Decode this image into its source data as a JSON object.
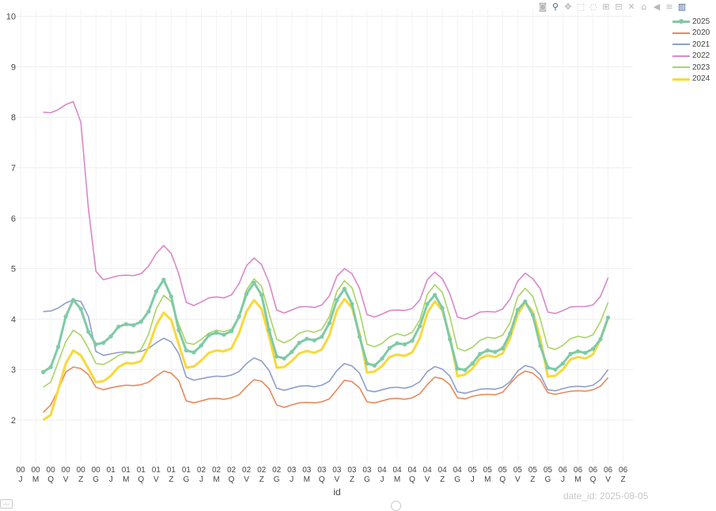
{
  "modebar": {
    "icons": [
      "camera-icon",
      "zoom-icon",
      "pan-icon",
      "box-select-icon",
      "lasso-icon",
      "zoom-in-icon",
      "zoom-out-icon",
      "autoscale-icon",
      "home-icon",
      "hover-closest-icon",
      "hover-compare-icon",
      "plotly-logo-icon"
    ]
  },
  "watermark_text": "date_id: 2025-08-05",
  "corner_button_label": "…",
  "chart_data": {
    "type": "line",
    "title": "",
    "xlabel": "id",
    "ylabel": "",
    "ylim": [
      1.2,
      10
    ],
    "yticks": [
      2,
      3,
      4,
      5,
      6,
      7,
      8,
      9,
      10
    ],
    "grid": true,
    "legend_position": "top-right",
    "tick_labels": [
      [
        "00",
        "J"
      ],
      [
        "00",
        "M"
      ],
      [
        "00",
        "Q"
      ],
      [
        "00",
        "V"
      ],
      [
        "00",
        "Z"
      ],
      [
        "00",
        "G"
      ],
      [
        "01",
        "J"
      ],
      [
        "01",
        "M"
      ],
      [
        "01",
        "Q"
      ],
      [
        "01",
        "V"
      ],
      [
        "01",
        "Z"
      ],
      [
        "01",
        "G"
      ],
      [
        "02",
        "J"
      ],
      [
        "02",
        "M"
      ],
      [
        "02",
        "Q"
      ],
      [
        "02",
        "V"
      ],
      [
        "02",
        "Z"
      ],
      [
        "02",
        "G"
      ],
      [
        "03",
        "J"
      ],
      [
        "03",
        "M"
      ],
      [
        "03",
        "Q"
      ],
      [
        "03",
        "V"
      ],
      [
        "03",
        "Z"
      ],
      [
        "03",
        "G"
      ],
      [
        "04",
        "J"
      ],
      [
        "04",
        "M"
      ],
      [
        "04",
        "Q"
      ],
      [
        "04",
        "V"
      ],
      [
        "04",
        "Z"
      ],
      [
        "04",
        "G"
      ],
      [
        "05",
        "J"
      ],
      [
        "05",
        "M"
      ],
      [
        "05",
        "Q"
      ],
      [
        "05",
        "V"
      ],
      [
        "05",
        "Z"
      ],
      [
        "05",
        "G"
      ],
      [
        "06",
        "J"
      ],
      [
        "06",
        "M"
      ],
      [
        "06",
        "Q"
      ],
      [
        "06",
        "V"
      ],
      [
        "06",
        "Z"
      ]
    ],
    "series": [
      {
        "name": "2020",
        "color": "#e8895d",
        "width": 1.6,
        "markers": false,
        "values": [
          2.15,
          2.3,
          2.6,
          2.95,
          3.05,
          3.02,
          2.9,
          2.65,
          2.6,
          2.64,
          2.67,
          2.69,
          2.68,
          2.7,
          2.75,
          2.87,
          2.97,
          2.93,
          2.78,
          2.38,
          2.34,
          2.38,
          2.42,
          2.43,
          2.41,
          2.44,
          2.5,
          2.66,
          2.8,
          2.77,
          2.62,
          2.3,
          2.25,
          2.3,
          2.34,
          2.35,
          2.34,
          2.36,
          2.42,
          2.6,
          2.79,
          2.76,
          2.64,
          2.36,
          2.34,
          2.38,
          2.42,
          2.43,
          2.41,
          2.44,
          2.52,
          2.7,
          2.85,
          2.82,
          2.7,
          2.44,
          2.42,
          2.47,
          2.5,
          2.51,
          2.5,
          2.55,
          2.72,
          2.88,
          2.97,
          2.93,
          2.8,
          2.54,
          2.51,
          2.54,
          2.57,
          2.58,
          2.57,
          2.6,
          2.67,
          2.84
        ]
      },
      {
        "name": "2021",
        "color": "#8f9ecb",
        "width": 1.6,
        "markers": false,
        "values": [
          4.15,
          4.16,
          4.22,
          4.32,
          4.38,
          4.35,
          4.05,
          3.36,
          3.28,
          3.31,
          3.34,
          3.35,
          3.34,
          3.36,
          3.42,
          3.53,
          3.62,
          3.55,
          3.32,
          2.85,
          2.79,
          2.82,
          2.85,
          2.87,
          2.86,
          2.89,
          2.96,
          3.12,
          3.23,
          3.17,
          2.98,
          2.63,
          2.59,
          2.63,
          2.67,
          2.68,
          2.66,
          2.69,
          2.77,
          2.98,
          3.12,
          3.07,
          2.93,
          2.59,
          2.56,
          2.6,
          2.64,
          2.65,
          2.63,
          2.67,
          2.76,
          2.96,
          3.06,
          3.01,
          2.87,
          2.56,
          2.53,
          2.57,
          2.61,
          2.62,
          2.61,
          2.65,
          2.76,
          2.97,
          3.08,
          3.04,
          2.9,
          2.6,
          2.58,
          2.62,
          2.66,
          2.67,
          2.66,
          2.69,
          2.8,
          3.0
        ]
      },
      {
        "name": "2022",
        "color": "#da87c8",
        "width": 1.6,
        "markers": false,
        "values": [
          8.1,
          8.09,
          8.15,
          8.25,
          8.31,
          7.9,
          6.2,
          4.95,
          4.78,
          4.82,
          4.86,
          4.87,
          4.86,
          4.9,
          5.05,
          5.3,
          5.46,
          5.3,
          4.9,
          4.33,
          4.27,
          4.34,
          4.42,
          4.44,
          4.42,
          4.48,
          4.7,
          5.06,
          5.21,
          5.08,
          4.72,
          4.18,
          4.12,
          4.18,
          4.24,
          4.25,
          4.23,
          4.28,
          4.46,
          4.85,
          5.0,
          4.9,
          4.61,
          4.09,
          4.04,
          4.1,
          4.17,
          4.18,
          4.17,
          4.21,
          4.38,
          4.78,
          4.93,
          4.8,
          4.5,
          4.04,
          4.0,
          4.06,
          4.14,
          4.15,
          4.14,
          4.2,
          4.4,
          4.75,
          4.91,
          4.8,
          4.6,
          4.14,
          4.11,
          4.17,
          4.24,
          4.25,
          4.25,
          4.28,
          4.45,
          4.82
        ]
      },
      {
        "name": "2023",
        "color": "#a9d465",
        "width": 1.6,
        "markers": false,
        "values": [
          2.65,
          2.75,
          3.15,
          3.55,
          3.78,
          3.68,
          3.42,
          3.12,
          3.1,
          3.18,
          3.28,
          3.33,
          3.32,
          3.4,
          3.7,
          4.2,
          4.47,
          4.35,
          3.9,
          3.53,
          3.5,
          3.6,
          3.72,
          3.78,
          3.75,
          3.8,
          4.05,
          4.58,
          4.8,
          4.65,
          4.1,
          3.6,
          3.53,
          3.6,
          3.72,
          3.77,
          3.74,
          3.8,
          4.05,
          4.55,
          4.76,
          4.62,
          4.15,
          3.5,
          3.45,
          3.52,
          3.65,
          3.71,
          3.67,
          3.74,
          3.98,
          4.49,
          4.68,
          4.53,
          4.05,
          3.42,
          3.37,
          3.44,
          3.58,
          3.64,
          3.62,
          3.68,
          3.93,
          4.44,
          4.61,
          4.45,
          4.0,
          3.44,
          3.4,
          3.48,
          3.61,
          3.66,
          3.63,
          3.69,
          3.95,
          4.33
        ]
      },
      {
        "name": "2024",
        "color": "#f7d93a",
        "width": 3,
        "markers": false,
        "values": [
          2.0,
          2.1,
          2.6,
          3.12,
          3.38,
          3.28,
          3.02,
          2.75,
          2.77,
          2.88,
          3.05,
          3.13,
          3.12,
          3.17,
          3.45,
          3.88,
          4.13,
          3.98,
          3.5,
          3.04,
          3.06,
          3.18,
          3.33,
          3.38,
          3.36,
          3.42,
          3.72,
          4.15,
          4.38,
          4.2,
          3.65,
          3.04,
          3.05,
          3.17,
          3.32,
          3.37,
          3.33,
          3.4,
          3.68,
          4.17,
          4.4,
          4.22,
          3.72,
          2.94,
          2.96,
          3.07,
          3.25,
          3.3,
          3.27,
          3.34,
          3.62,
          4.12,
          4.35,
          4.17,
          3.65,
          2.87,
          2.9,
          3.02,
          3.22,
          3.28,
          3.25,
          3.32,
          3.62,
          4.09,
          4.33,
          4.15,
          3.62,
          2.86,
          2.88,
          3.0,
          3.2,
          3.25,
          3.22,
          3.3,
          3.6,
          4.02
        ]
      },
      {
        "name": "2025",
        "color": "#7ecaa7",
        "width": 3,
        "markers": true,
        "values": [
          2.95,
          3.05,
          3.45,
          4.05,
          4.38,
          4.2,
          3.75,
          3.5,
          3.53,
          3.66,
          3.85,
          3.9,
          3.88,
          3.95,
          4.15,
          4.55,
          4.78,
          4.45,
          3.78,
          3.38,
          3.34,
          3.48,
          3.68,
          3.73,
          3.69,
          3.76,
          4.05,
          4.5,
          4.72,
          4.48,
          3.78,
          3.26,
          3.22,
          3.35,
          3.53,
          3.61,
          3.58,
          3.65,
          3.92,
          4.38,
          4.6,
          4.3,
          3.65,
          3.12,
          3.08,
          3.22,
          3.43,
          3.52,
          3.5,
          3.57,
          3.86,
          4.3,
          4.48,
          4.22,
          3.6,
          3.02,
          2.99,
          3.12,
          3.31,
          3.38,
          3.35,
          3.42,
          3.72,
          4.18,
          4.35,
          4.08,
          3.47,
          3.04,
          3.0,
          3.12,
          3.31,
          3.36,
          3.33,
          3.41,
          3.6,
          4.03
        ]
      }
    ],
    "legend_order": [
      "2025",
      "2020",
      "2021",
      "2022",
      "2023",
      "2024"
    ]
  }
}
